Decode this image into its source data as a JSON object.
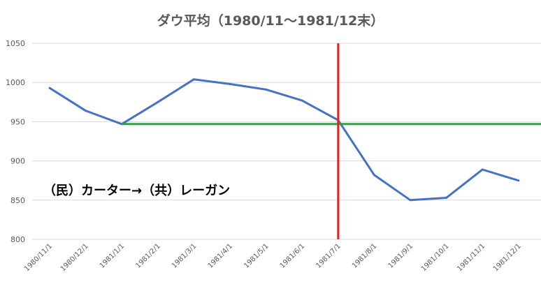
{
  "chart_data": {
    "type": "line",
    "title": "ダウ平均（1980/11～1981/12末）",
    "categories": [
      "1980/11/1",
      "1980/12/1",
      "1981/1/1",
      "1981/2/1",
      "1981/3/1",
      "1981/4/1",
      "1981/5/1",
      "1981/6/1",
      "1981/7/1",
      "1981/8/1",
      "1981/9/1",
      "1981/10/1",
      "1981/11/1",
      "1981/12/1"
    ],
    "series": [
      {
        "values": [
          993,
          964,
          947,
          975,
          1004,
          998,
          991,
          977,
          952,
          882,
          850,
          853,
          889,
          875
        ],
        "color": "#4472c4"
      }
    ],
    "yticks": [
      800,
      850,
      900,
      950,
      1000,
      1050
    ],
    "ylim": [
      800,
      1050
    ],
    "grid": true,
    "reference_lines": [
      {
        "orientation": "horizontal",
        "value": 947,
        "from_category": "1981/1/1",
        "color": "#2ea043"
      },
      {
        "orientation": "vertical",
        "category": "1981/7/1",
        "color": "#e02424"
      }
    ],
    "annotation": "（民）カーター→（共）レーガン"
  }
}
